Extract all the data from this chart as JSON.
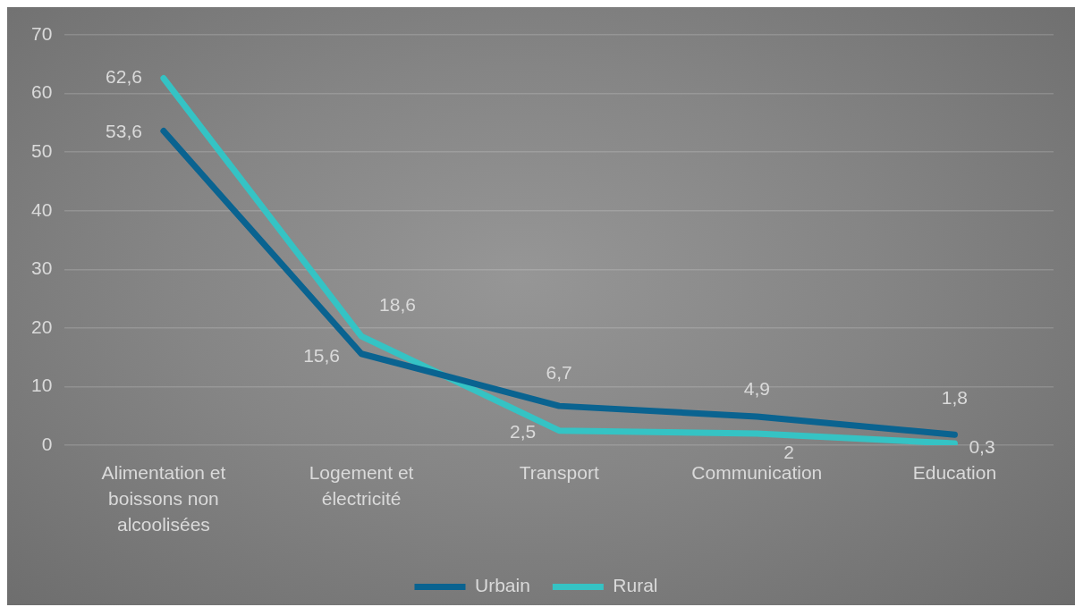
{
  "chart_data": {
    "type": "line",
    "categories": [
      "Alimentation et boissons non alcoolisées",
      "Logement et électricité",
      "Transport",
      "Communication",
      "Education"
    ],
    "series": [
      {
        "name": "Urbain",
        "color": "#0a6390",
        "values": [
          53.6,
          15.6,
          6.7,
          4.9,
          1.8
        ],
        "value_labels": [
          "53,6",
          "15,6",
          "6,7",
          "4,9",
          "1,8"
        ]
      },
      {
        "name": "Rural",
        "color": "#35c3c4",
        "values": [
          62.6,
          18.6,
          2.5,
          2,
          0.3
        ],
        "value_labels": [
          "62,6",
          "18,6",
          "2,5",
          "2",
          "0,3"
        ]
      }
    ],
    "ylim": [
      0,
      70
    ],
    "yticks": [
      0,
      10,
      20,
      30,
      40,
      50,
      60,
      70
    ],
    "grid": "y",
    "legend": "bottom",
    "marker": "none",
    "line_style": "solid"
  }
}
